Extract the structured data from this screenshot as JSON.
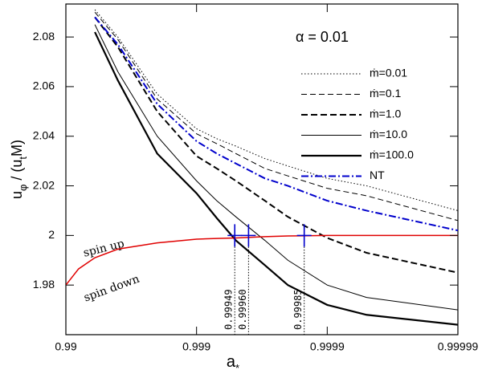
{
  "chart_data": {
    "type": "line",
    "xscale": "log-complement",
    "xlabel": [
      {
        "text": "a"
      },
      {
        "text": "*",
        "sub": true
      }
    ],
    "ylabel": [
      {
        "text": "u"
      },
      {
        "text": "φ",
        "sub": true
      },
      {
        "text": " / (u"
      },
      {
        "text": "t",
        "sub": true
      },
      {
        "text": "M)"
      }
    ],
    "annotations": [
      "α  =  0.01",
      "spin up",
      "spin down"
    ],
    "xlim": [
      0.99,
      0.99999
    ],
    "xticks": [
      0.99,
      0.999,
      0.9999,
      0.99999
    ],
    "ylim": [
      1.96,
      2.0933
    ],
    "yticks": [
      1.98,
      2,
      2.02,
      2.04,
      2.06,
      2.08
    ],
    "x": [
      0.99,
      0.992,
      0.994,
      0.996,
      0.998,
      0.999,
      0.9993,
      0.9995,
      0.9997,
      0.9998,
      0.9999,
      0.99995,
      0.99999
    ],
    "series": [
      {
        "name": "ṁ=0.01",
        "color": "#000000",
        "dash": "1.5 2.5",
        "width": 1,
        "values": [
          null,
          null,
          2.091,
          2.08,
          2.057,
          2.043,
          2.039,
          2.036,
          2.031,
          2.028,
          2.023,
          2.02,
          2.01
        ]
      },
      {
        "name": "ṁ=0.1",
        "color": "#000000",
        "dash": "7 4",
        "width": 1,
        "values": [
          null,
          null,
          2.09,
          2.079,
          2.055,
          2.041,
          2.037,
          2.033,
          2.027,
          2.024,
          2.019,
          2.016,
          2.006
        ]
      },
      {
        "name": "ṁ=1.0",
        "color": "#000000",
        "dash": "8 4",
        "width": 2,
        "values": [
          null,
          null,
          2.088,
          2.076,
          2.05,
          2.032,
          2.027,
          2.022,
          2.014,
          2.0075,
          1.999,
          1.993,
          1.985
        ]
      },
      {
        "name": "ṁ=10.0",
        "color": "#000000",
        "dash": "none",
        "width": 1,
        "values": [
          null,
          null,
          2.085,
          2.066,
          2.04,
          2.022,
          2.014,
          2.0075,
          1.998,
          1.99,
          1.98,
          1.975,
          1.97
        ]
      },
      {
        "name": "ṁ=100.0",
        "color": "#000000",
        "dash": "none",
        "width": 2.2,
        "values": [
          null,
          null,
          2.082,
          2.0625,
          2.033,
          2.017,
          2.007,
          1.998,
          1.988,
          1.98,
          1.972,
          1.968,
          1.964
        ]
      },
      {
        "name": "NT",
        "color": "#0000cc",
        "dash": "9 3 2 3",
        "width": 2,
        "values": [
          null,
          null,
          2.088,
          2.077,
          2.053,
          2.038,
          2.033,
          2.029,
          2.023,
          2.02,
          2.014,
          2.01,
          2.002
        ]
      },
      {
        "color": "#e00000",
        "dash": "none",
        "width": 1.5,
        "values": [
          1.98,
          1.9865,
          1.991,
          1.9945,
          1.997,
          1.9985,
          1.9988,
          1.999,
          1.9995,
          1.9998,
          2.0,
          2.0,
          2.0
        ]
      }
    ],
    "markers": {
      "y": 2,
      "color": "#0000cc",
      "x": [
        {
          "value": 0.99949,
          "label": "0.99949"
        },
        {
          "value": 0.9996,
          "label": "0.99960"
        },
        {
          "value": 0.99985,
          "label": "0.99985"
        }
      ]
    }
  }
}
